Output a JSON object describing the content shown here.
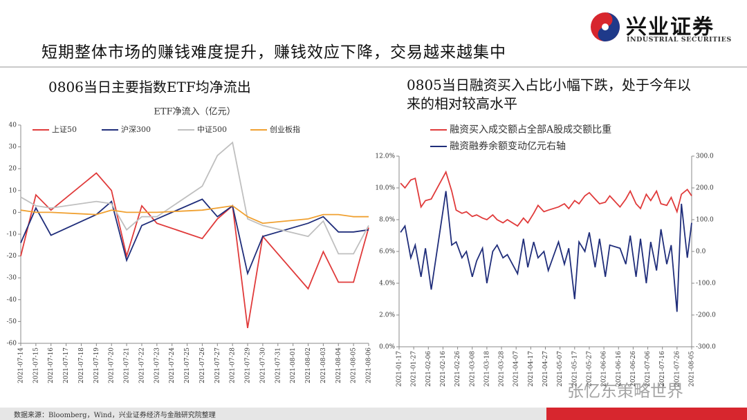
{
  "header": {
    "title": "短期整体市场的赚钱难度提升，赚钱效应下降，交易越来越集中",
    "logo_cn": "兴业证券",
    "logo_en": "INDUSTRIAL SECURITIES"
  },
  "footer": {
    "source": "数据来源：Bloomberg，Wind，兴业证券经济与金融研究院整理"
  },
  "watermark": "张忆东策略世界",
  "chart_data": [
    {
      "type": "line",
      "heading": "0806当日主要指数ETF均净流出",
      "title": "ETF净流入（亿元）",
      "x": [
        "2021-07-14",
        "2021-07-15",
        "2021-07-16",
        "2021-07-19",
        "2021-07-20",
        "2021-07-21",
        "2021-07-22",
        "2021-07-23",
        "2021-07-26",
        "2021-07-27",
        "2021-07-28",
        "2021-07-29",
        "2021-07-30",
        "2021-08-02",
        "2021-08-03",
        "2021-08-04",
        "2021-08-05",
        "2021-08-06"
      ],
      "series": [
        {
          "name": "上证50",
          "color": "#e03a3a",
          "values": [
            -20,
            8,
            1,
            18,
            10,
            -20,
            3,
            -5,
            -12,
            -3,
            3,
            -53,
            -11,
            -35,
            -18,
            -32,
            -32,
            -7
          ]
        },
        {
          "name": "沪深300",
          "color": "#1f2d7a",
          "values": [
            -14,
            2,
            -10.5,
            -1,
            5,
            -22,
            -6,
            -3,
            6,
            -2,
            3,
            -28,
            -11,
            -5,
            -2,
            -9,
            -9,
            -8
          ]
        },
        {
          "name": "中证500",
          "color": "#bfbfbf",
          "values": [
            7,
            3,
            2,
            5,
            4,
            -8,
            -2,
            -2,
            12,
            26,
            32,
            -3,
            -6,
            -11,
            -4,
            -19,
            -19,
            -6
          ]
        },
        {
          "name": "创业板指",
          "color": "#f0a030",
          "values": [
            1,
            0,
            0,
            -1,
            1,
            0,
            0,
            0,
            1,
            2,
            3,
            -2,
            -5,
            -3,
            -1,
            -1,
            -2,
            -2
          ]
        }
      ],
      "xlim": [
        "2021-07-14",
        "2021-08-06"
      ],
      "xticks": [
        "2021-07-14",
        "2021-07-15",
        "2021-07-16",
        "2021-07-17",
        "2021-07-18",
        "2021-07-19",
        "2021-07-20",
        "2021-07-21",
        "2021-07-22",
        "2021-07-23",
        "2021-07-24",
        "2021-07-25",
        "2021-07-26",
        "2021-07-27",
        "2021-07-28",
        "2021-07-29",
        "2021-07-30",
        "2021-07-31",
        "2021-08-01",
        "2021-08-02",
        "2021-08-03",
        "2021-08-04",
        "2021-08-05",
        "2021-08-06"
      ],
      "ylim": [
        -60,
        40
      ],
      "yticks": [
        -60,
        -50,
        -40,
        -30,
        -20,
        -10,
        0,
        10,
        20,
        30,
        40
      ],
      "grid": false,
      "legend": "top"
    },
    {
      "type": "line",
      "heading": "0805当日融资买入占比小幅下跌，处于今年以来的相对较高水平",
      "x": [
        "2021-01-18",
        "2021-01-21",
        "2021-01-25",
        "2021-01-28",
        "2021-02-01",
        "2021-02-04",
        "2021-02-08",
        "2021-02-18",
        "2021-02-22",
        "2021-02-25",
        "2021-03-01",
        "2021-03-04",
        "2021-03-08",
        "2021-03-11",
        "2021-03-15",
        "2021-03-18",
        "2021-03-22",
        "2021-03-25",
        "2021-03-29",
        "2021-04-01",
        "2021-04-08",
        "2021-04-12",
        "2021-04-15",
        "2021-04-19",
        "2021-04-22",
        "2021-04-26",
        "2021-04-29",
        "2021-05-06",
        "2021-05-10",
        "2021-05-13",
        "2021-05-17",
        "2021-05-20",
        "2021-05-24",
        "2021-05-27",
        "2021-05-31",
        "2021-06-03",
        "2021-06-07",
        "2021-06-10",
        "2021-06-17",
        "2021-06-21",
        "2021-06-24",
        "2021-06-28",
        "2021-07-01",
        "2021-07-05",
        "2021-07-08",
        "2021-07-12",
        "2021-07-15",
        "2021-07-19",
        "2021-07-22",
        "2021-07-26",
        "2021-07-29",
        "2021-08-02",
        "2021-08-05"
      ],
      "series": [
        {
          "name": "融资买入成交额占全部A股成交额比重",
          "color": "#e03a3a",
          "values": [
            10.3,
            10.0,
            10.5,
            10.6,
            8.8,
            9.2,
            9.3,
            11.0,
            9.8,
            8.6,
            8.4,
            8.5,
            8.2,
            8.3,
            8.1,
            8.0,
            8.3,
            8.0,
            7.8,
            8.0,
            7.6,
            8.1,
            7.8,
            8.4,
            8.9,
            8.5,
            8.6,
            8.8,
            9.0,
            8.7,
            9.2,
            9.0,
            9.5,
            9.7,
            9.3,
            9.0,
            9.1,
            9.5,
            8.8,
            9.3,
            9.8,
            9.0,
            8.7,
            9.6,
            9.2,
            9.8,
            9.0,
            8.9,
            9.4,
            8.5,
            9.6,
            9.9,
            9.5
          ]
        },
        {
          "name": "融资融券余额变动亿元右轴",
          "color": "#1f2d7a",
          "axis": "y2",
          "values": [
            60,
            80,
            -20,
            20,
            -80,
            10,
            -120,
            190,
            20,
            30,
            -20,
            0,
            -80,
            -30,
            10,
            -100,
            0,
            20,
            -20,
            -10,
            -70,
            40,
            -50,
            30,
            -20,
            0,
            -60,
            30,
            -40,
            10,
            -150,
            30,
            0,
            60,
            -50,
            40,
            -80,
            20,
            10,
            -40,
            50,
            -80,
            40,
            -100,
            30,
            -60,
            70,
            -40,
            20,
            -190,
            150,
            -20,
            90
          ]
        }
      ],
      "xlim": [
        "2021-01-17",
        "2021-08-05"
      ],
      "xticks": [
        "2021-01-17",
        "2021-01-27",
        "2021-02-06",
        "2021-02-16",
        "2021-02-26",
        "2021-03-08",
        "2021-03-18",
        "2021-03-28",
        "2021-04-07",
        "2021-04-17",
        "2021-04-27",
        "2021-05-07",
        "2021-05-17",
        "2021-05-27",
        "2021-06-06",
        "2021-06-16",
        "2021-06-26",
        "2021-07-06",
        "2021-07-16",
        "2021-07-26",
        "2021-08-05"
      ],
      "ylim": [
        0,
        12
      ],
      "yticks": [
        {
          "value": 0,
          "label": "0.0%"
        },
        {
          "value": 2,
          "label": "2.0%"
        },
        {
          "value": 4,
          "label": "4.0%"
        },
        {
          "value": 6,
          "label": "6.0%"
        },
        {
          "value": 8,
          "label": "8.0%"
        },
        {
          "value": 10,
          "label": "10.0%"
        },
        {
          "value": 12,
          "label": "12.0%"
        }
      ],
      "y2lim": [
        -300,
        300
      ],
      "y2ticks": [
        {
          "value": -300,
          "label": "-300.0"
        },
        {
          "value": -200,
          "label": "-200.0"
        },
        {
          "value": -100,
          "label": "-100.0"
        },
        {
          "value": 0,
          "label": "0.0"
        },
        {
          "value": 100,
          "label": "100.0"
        },
        {
          "value": 200,
          "label": "200.0"
        },
        {
          "value": 300,
          "label": "300.0"
        }
      ],
      "grid": false,
      "legend": "top"
    }
  ]
}
